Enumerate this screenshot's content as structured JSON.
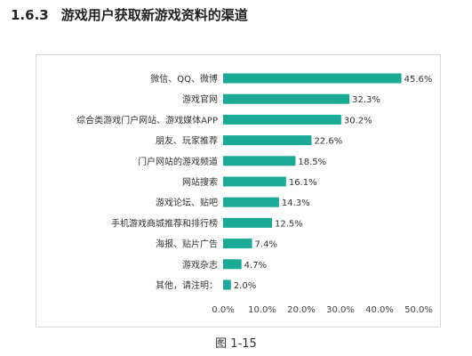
{
  "heading": {
    "number": "1.6.3",
    "text": "游戏用户获取新游戏资料的渠道"
  },
  "caption": "图 1-15",
  "colors": {
    "bar": "#1aaa96"
  },
  "chart_data": {
    "type": "bar",
    "orientation": "horizontal",
    "categories": [
      "微信、QQ、微博",
      "游戏官网",
      "综合类游戏门户网站、游戏媒体APP",
      "朋友、玩家推荐",
      "门户网站的游戏频道",
      "网站搜索",
      "游戏论坛、贴吧",
      "手机游戏商城推荐和排行榜",
      "海报、贴片广告",
      "游戏杂志",
      "其他，请注明："
    ],
    "values": [
      45.6,
      32.3,
      30.2,
      22.6,
      18.5,
      16.1,
      14.3,
      12.5,
      7.4,
      4.7,
      2.0
    ],
    "value_labels": [
      "45.6%",
      "32.3%",
      "30.2%",
      "22.6%",
      "18.5%",
      "16.1%",
      "14.3%",
      "12.5%",
      "7.4%",
      "4.7%",
      "2.0%"
    ],
    "x_ticks": [
      0,
      10,
      20,
      30,
      40,
      50
    ],
    "x_tick_labels": [
      "0.0%",
      "10.0%",
      "20.0%",
      "30.0%",
      "40.0%",
      "50.0%"
    ],
    "xlim": [
      0,
      50
    ],
    "title": "",
    "xlabel": "",
    "ylabel": "",
    "grid": false,
    "legend": false
  }
}
